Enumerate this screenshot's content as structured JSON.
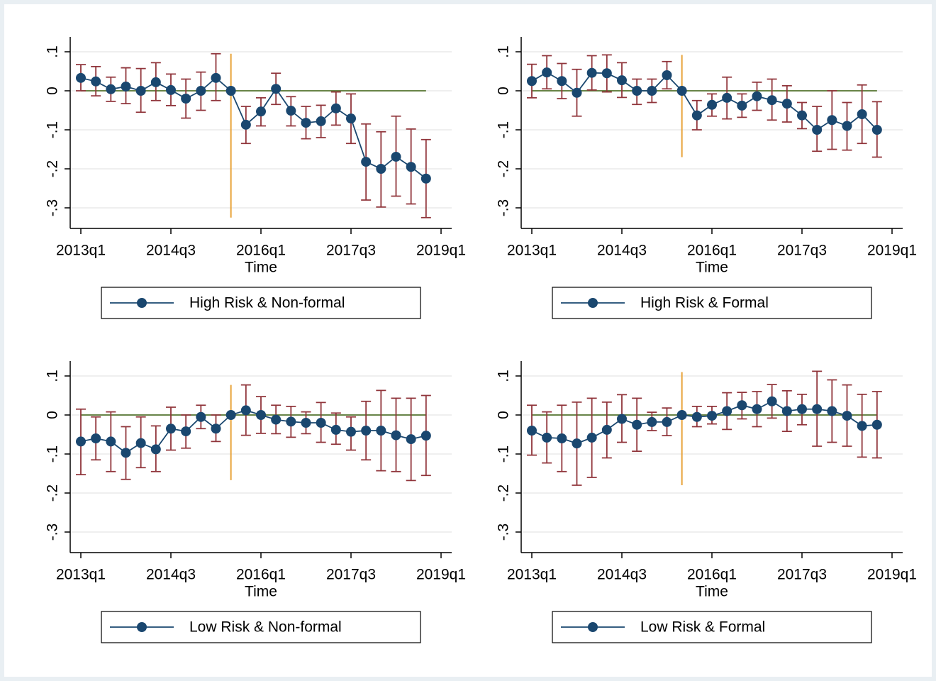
{
  "chart_data": [
    {
      "type": "line",
      "xlabel": "Time",
      "x": [
        "2013q1",
        "2013q2",
        "2013q3",
        "2013q4",
        "2014q1",
        "2014q2",
        "2014q3",
        "2014q4",
        "2015q1",
        "2015q2",
        "2015q3",
        "2015q4",
        "2016q1",
        "2016q2",
        "2016q3",
        "2016q4",
        "2017q1",
        "2017q2",
        "2017q3",
        "2017q4",
        "2018q1",
        "2018q2",
        "2018q3",
        "2018q4"
      ],
      "xlim": [
        "2013q1",
        "2019q1"
      ],
      "xticks": [
        "2013q1",
        "2014q3",
        "2016q1",
        "2017q3",
        "2019q1"
      ],
      "ylim": [
        -0.3,
        0.1
      ],
      "yticks": [
        {
          "value": -0.3,
          "label": "-.3"
        },
        {
          "value": -0.2,
          "label": "-.2"
        },
        {
          "value": -0.1,
          "label": "-.1"
        },
        0,
        {
          "value": 0.1,
          "label": ".1"
        }
      ],
      "grid": true,
      "reference_y": 0,
      "reference_color": "#55752f",
      "vline": {
        "x": "2015q3",
        "from": 0.095,
        "to": -0.325,
        "color": "#e8a33a"
      },
      "series": [
        {
          "name": "High Risk & Non-formal",
          "color": "#1a476f",
          "ci_color": "#90353b",
          "values": [
            0.033,
            0.024,
            0.004,
            0.011,
            0,
            0.022,
            0.002,
            -0.02,
            0,
            0.033,
            0,
            -0.087,
            -0.053,
            0.005,
            -0.051,
            -0.082,
            -0.078,
            -0.045,
            -0.071,
            -0.182,
            -0.2,
            -0.169,
            -0.195,
            -0.225
          ],
          "ci_low": [
            0,
            -0.013,
            -0.027,
            -0.033,
            -0.055,
            -0.025,
            -0.038,
            -0.07,
            -0.05,
            -0.025,
            0,
            -0.135,
            -0.09,
            -0.035,
            -0.09,
            -0.123,
            -0.12,
            -0.088,
            -0.135,
            -0.28,
            -0.298,
            -0.27,
            -0.29,
            -0.325
          ],
          "ci_high": [
            0.067,
            0.062,
            0.035,
            0.059,
            0.057,
            0.072,
            0.043,
            0.03,
            0.048,
            0.095,
            0,
            -0.04,
            -0.018,
            0.045,
            -0.015,
            -0.04,
            -0.037,
            -0.003,
            -0.008,
            -0.085,
            -0.105,
            -0.065,
            -0.098,
            -0.125
          ]
        }
      ]
    },
    {
      "type": "line",
      "xlabel": "Time",
      "x": [
        "2013q1",
        "2013q2",
        "2013q3",
        "2013q4",
        "2014q1",
        "2014q2",
        "2014q3",
        "2014q4",
        "2015q1",
        "2015q2",
        "2015q3",
        "2015q4",
        "2016q1",
        "2016q2",
        "2016q3",
        "2016q4",
        "2017q1",
        "2017q2",
        "2017q3",
        "2017q4",
        "2018q1",
        "2018q2",
        "2018q3",
        "2018q4"
      ],
      "xlim": [
        "2013q1",
        "2019q1"
      ],
      "xticks": [
        "2013q1",
        "2014q3",
        "2016q1",
        "2017q3",
        "2019q1"
      ],
      "ylim": [
        -0.3,
        0.1
      ],
      "yticks": [
        {
          "value": -0.3,
          "label": "-.3"
        },
        {
          "value": -0.2,
          "label": "-.2"
        },
        {
          "value": -0.1,
          "label": "-.1"
        },
        0,
        {
          "value": 0.1,
          "label": ".1"
        }
      ],
      "grid": true,
      "reference_y": 0,
      "reference_color": "#55752f",
      "vline": {
        "x": "2015q3",
        "from": 0.092,
        "to": -0.17,
        "color": "#e8a33a"
      },
      "series": [
        {
          "name": "High Risk & Formal",
          "color": "#1a476f",
          "ci_color": "#90353b",
          "values": [
            0.025,
            0.047,
            0.025,
            -0.005,
            0.046,
            0.045,
            0.027,
            0,
            0,
            0.04,
            0,
            -0.063,
            -0.036,
            -0.018,
            -0.038,
            -0.014,
            -0.024,
            -0.033,
            -0.063,
            -0.1,
            -0.075,
            -0.09,
            -0.06,
            -0.1
          ],
          "ci_low": [
            -0.018,
            0.005,
            -0.02,
            -0.065,
            0.002,
            -0.003,
            -0.017,
            -0.035,
            -0.03,
            0.005,
            0,
            -0.1,
            -0.065,
            -0.072,
            -0.068,
            -0.05,
            -0.075,
            -0.08,
            -0.097,
            -0.155,
            -0.15,
            -0.152,
            -0.135,
            -0.17
          ],
          "ci_high": [
            0.068,
            0.09,
            0.07,
            0.055,
            0.09,
            0.092,
            0.072,
            0.03,
            0.03,
            0.075,
            0,
            -0.025,
            -0.008,
            0.035,
            -0.008,
            0.022,
            0.03,
            0.013,
            -0.03,
            -0.04,
            0,
            -0.03,
            0.015,
            -0.028
          ]
        }
      ]
    },
    {
      "type": "line",
      "xlabel": "Time",
      "x": [
        "2013q1",
        "2013q2",
        "2013q3",
        "2013q4",
        "2014q1",
        "2014q2",
        "2014q3",
        "2014q4",
        "2015q1",
        "2015q2",
        "2015q3",
        "2015q4",
        "2016q1",
        "2016q2",
        "2016q3",
        "2016q4",
        "2017q1",
        "2017q2",
        "2017q3",
        "2017q4",
        "2018q1",
        "2018q2",
        "2018q3",
        "2018q4"
      ],
      "xlim": [
        "2013q1",
        "2019q1"
      ],
      "xticks": [
        "2013q1",
        "2014q3",
        "2016q1",
        "2017q3",
        "2019q1"
      ],
      "ylim": [
        -0.3,
        0.1
      ],
      "yticks": [
        {
          "value": -0.3,
          "label": "-.3"
        },
        {
          "value": -0.2,
          "label": "-.2"
        },
        {
          "value": -0.1,
          "label": "-.1"
        },
        0,
        {
          "value": 0.1,
          "label": ".1"
        }
      ],
      "grid": true,
      "reference_y": 0,
      "reference_color": "#55752f",
      "vline": {
        "x": "2015q3",
        "from": 0.077,
        "to": -0.167,
        "color": "#e8a33a"
      },
      "series": [
        {
          "name": "Low Risk & Non-formal",
          "color": "#1a476f",
          "ci_color": "#90353b",
          "values": [
            -0.068,
            -0.06,
            -0.068,
            -0.097,
            -0.072,
            -0.088,
            -0.035,
            -0.042,
            -0.005,
            -0.035,
            0,
            0.012,
            0,
            -0.012,
            -0.017,
            -0.02,
            -0.02,
            -0.038,
            -0.043,
            -0.04,
            -0.04,
            -0.052,
            -0.062,
            -0.053
          ],
          "ci_low": [
            -0.153,
            -0.115,
            -0.145,
            -0.165,
            -0.135,
            -0.145,
            -0.09,
            -0.085,
            -0.035,
            -0.068,
            0,
            -0.052,
            -0.047,
            -0.048,
            -0.057,
            -0.048,
            -0.07,
            -0.075,
            -0.09,
            -0.115,
            -0.143,
            -0.145,
            -0.168,
            -0.155
          ],
          "ci_high": [
            0.015,
            -0.005,
            0.008,
            -0.03,
            -0.005,
            -0.028,
            0.02,
            0,
            0.025,
            0,
            0,
            0.077,
            0.047,
            0.025,
            0.022,
            0.008,
            0.032,
            0.005,
            -0.005,
            0.035,
            0.063,
            0.043,
            0.043,
            0.05
          ]
        }
      ]
    },
    {
      "type": "line",
      "xlabel": "Time",
      "x": [
        "2013q1",
        "2013q2",
        "2013q3",
        "2013q4",
        "2014q1",
        "2014q2",
        "2014q3",
        "2014q4",
        "2015q1",
        "2015q2",
        "2015q3",
        "2015q4",
        "2016q1",
        "2016q2",
        "2016q3",
        "2016q4",
        "2017q1",
        "2017q2",
        "2017q3",
        "2017q4",
        "2018q1",
        "2018q2",
        "2018q3",
        "2018q4"
      ],
      "xlim": [
        "2013q1",
        "2019q1"
      ],
      "xticks": [
        "2013q1",
        "2014q3",
        "2016q1",
        "2017q3",
        "2019q1"
      ],
      "ylim": [
        -0.3,
        0.1
      ],
      "yticks": [
        {
          "value": -0.3,
          "label": "-.3"
        },
        {
          "value": -0.2,
          "label": "-.2"
        },
        {
          "value": -0.1,
          "label": "-.1"
        },
        0,
        {
          "value": 0.1,
          "label": ".1"
        }
      ],
      "grid": true,
      "reference_y": 0,
      "reference_color": "#55752f",
      "vline": {
        "x": "2015q3",
        "from": 0.11,
        "to": -0.18,
        "color": "#e8a33a"
      },
      "series": [
        {
          "name": "Low Risk & Formal",
          "color": "#1a476f",
          "ci_color": "#90353b",
          "values": [
            -0.04,
            -0.058,
            -0.06,
            -0.073,
            -0.058,
            -0.038,
            -0.01,
            -0.025,
            -0.018,
            -0.018,
            0,
            -0.005,
            -0.002,
            0.01,
            0.025,
            0.015,
            0.035,
            0.01,
            0.015,
            0.015,
            0.01,
            -0.002,
            -0.028,
            -0.025
          ],
          "ci_low": [
            -0.103,
            -0.123,
            -0.145,
            -0.18,
            -0.16,
            -0.11,
            -0.07,
            -0.093,
            -0.04,
            -0.053,
            0,
            -0.03,
            -0.023,
            -0.037,
            -0.01,
            -0.03,
            -0.008,
            -0.042,
            -0.025,
            -0.08,
            -0.07,
            -0.08,
            -0.108,
            -0.11
          ],
          "ci_high": [
            0.025,
            0.008,
            0.025,
            0.033,
            0.043,
            0.033,
            0.052,
            0.043,
            0.007,
            0.018,
            0,
            0.022,
            0.022,
            0.057,
            0.058,
            0.06,
            0.078,
            0.062,
            0.053,
            0.112,
            0.09,
            0.077,
            0.053,
            0.06
          ]
        }
      ]
    }
  ]
}
